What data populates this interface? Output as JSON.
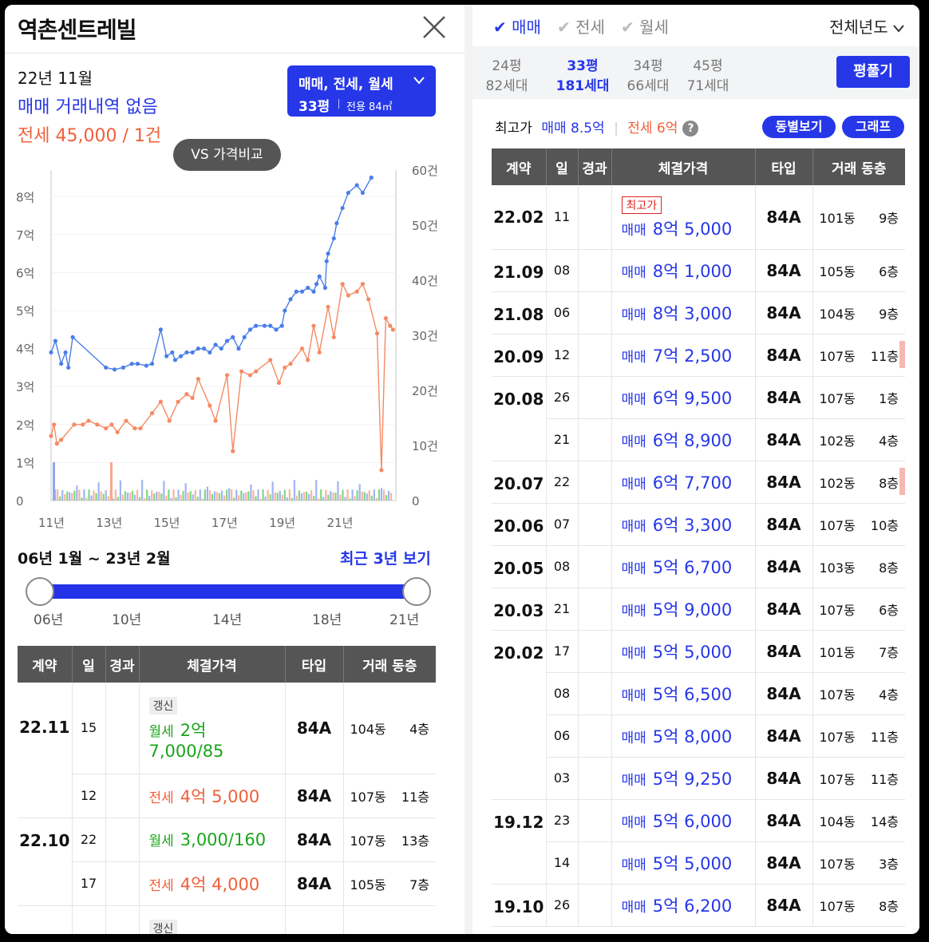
{
  "title": "역촌센트레빌",
  "summary": {
    "month": "22년 11월",
    "sale_status": "매매 거래내역 없음",
    "lease": "전세 45,000 / 1건"
  },
  "filter_button": {
    "line1": "매매, 전세, 월세",
    "size": "33평",
    "area": "전용 84㎡"
  },
  "vs_button": "VS 가격비교",
  "chart_data": {
    "type": "line",
    "x_tick_labels": [
      "11년",
      "13년",
      "15년",
      "17년",
      "19년",
      "21년"
    ],
    "y_left_ticks": [
      "0",
      "1억",
      "2억",
      "3억",
      "4억",
      "5억",
      "6억",
      "7억",
      "8억"
    ],
    "y_left_range": [
      0,
      8.7
    ],
    "y_right_ticks": [
      "0",
      "10건",
      "20건",
      "30건",
      "40건",
      "50건",
      "60건"
    ],
    "y_right_range": [
      0,
      60
    ],
    "grid": true,
    "colors": {
      "sale": "#4a7ee8",
      "lease": "#f58a64"
    },
    "series": [
      {
        "key": "sale",
        "x": [
          2011.0,
          2011.15,
          2011.35,
          2011.5,
          2011.6,
          2011.75,
          2012.9,
          2013.2,
          2013.5,
          2013.8,
          2014.0,
          2014.3,
          2014.5,
          2014.8,
          2015.0,
          2015.2,
          2015.3,
          2015.5,
          2015.7,
          2015.9,
          2016.1,
          2016.3,
          2016.5,
          2016.7,
          2016.9,
          2017.1,
          2017.3,
          2017.5,
          2017.7,
          2017.9,
          2018.1,
          2018.4,
          2018.6,
          2018.8,
          2019.0,
          2019.1,
          2019.3,
          2019.5,
          2019.7,
          2019.9,
          2020.1,
          2020.2,
          2020.3,
          2020.5,
          2020.55,
          2020.6,
          2020.8,
          2020.9,
          2021.1,
          2021.3,
          2021.6,
          2021.8,
          2022.1
        ],
        "y": [
          3.9,
          4.2,
          3.6,
          3.9,
          3.5,
          4.3,
          3.5,
          3.45,
          3.5,
          3.6,
          3.6,
          3.55,
          3.6,
          4.5,
          3.8,
          3.9,
          3.7,
          3.8,
          3.9,
          3.9,
          4.0,
          4.0,
          3.9,
          4.1,
          4.0,
          4.2,
          4.3,
          4.0,
          4.3,
          4.5,
          4.6,
          4.6,
          4.6,
          4.5,
          4.6,
          5.0,
          5.3,
          5.5,
          5.5,
          5.6,
          5.5,
          5.7,
          5.9,
          5.6,
          6.3,
          6.5,
          6.9,
          7.3,
          7.7,
          8.1,
          8.3,
          8.1,
          8.5
        ]
      },
      {
        "key": "lease",
        "x": [
          2011.0,
          2011.1,
          2011.2,
          2011.35,
          2011.8,
          2012.1,
          2012.3,
          2012.6,
          2012.9,
          2013.1,
          2013.3,
          2013.6,
          2013.9,
          2014.1,
          2014.5,
          2014.8,
          2015.1,
          2015.4,
          2015.7,
          2015.9,
          2016.1,
          2016.5,
          2016.7,
          2017.1,
          2017.3,
          2017.6,
          2017.9,
          2018.1,
          2018.6,
          2018.9,
          2019.1,
          2019.3,
          2019.7,
          2019.9,
          2020.1,
          2020.3,
          2020.6,
          2020.8,
          2021.1,
          2021.3,
          2021.6,
          2021.8,
          2022.0,
          2022.3,
          2022.45,
          2022.6,
          2022.75,
          2022.85
        ],
        "y": [
          1.7,
          2.0,
          1.5,
          1.6,
          2.0,
          2.0,
          2.1,
          2.0,
          1.9,
          2.0,
          1.8,
          2.1,
          1.9,
          1.9,
          2.3,
          2.6,
          2.1,
          2.6,
          2.8,
          2.7,
          3.2,
          2.5,
          2.1,
          3.3,
          1.3,
          3.4,
          3.3,
          3.4,
          3.7,
          3.1,
          3.5,
          3.6,
          4.0,
          3.7,
          4.6,
          3.9,
          5.1,
          4.3,
          5.7,
          5.4,
          5.5,
          5.7,
          5.3,
          4.4,
          0.8,
          4.8,
          4.6,
          4.5
        ]
      }
    ]
  },
  "range": {
    "label": "06년 1월 ~ 23년 2월",
    "recent_link": "최근 3년 보기",
    "ticks": [
      "06년",
      "10년",
      "14년",
      "18년",
      "21년"
    ]
  },
  "table_headers": [
    "계약",
    "일",
    "경과",
    "체결가격",
    "타입",
    "거래 동층"
  ],
  "left_rows": [
    {
      "date": "22.11",
      "day": "15",
      "tag": "갱신",
      "kind": "월세",
      "kind_class": "rent",
      "price": "2억",
      "price2": "7,000/85",
      "type": "84A",
      "dong": "104동",
      "floor": "4층"
    },
    {
      "date": "",
      "day": "12",
      "tag": "",
      "kind": "전세",
      "kind_class": "lease",
      "price": "4억 5,000",
      "price2": "",
      "type": "84A",
      "dong": "107동",
      "floor": "11층"
    },
    {
      "date": "22.10",
      "day": "22",
      "tag": "",
      "kind": "월세",
      "kind_class": "rent",
      "price": "3,000/160",
      "price2": "",
      "type": "84A",
      "dong": "107동",
      "floor": "13층"
    },
    {
      "date": "",
      "day": "17",
      "tag": "",
      "kind": "전세",
      "kind_class": "lease",
      "price": "4억 4,000",
      "price2": "",
      "type": "84A",
      "dong": "105동",
      "floor": "7층"
    },
    {
      "date": "",
      "day": "",
      "tag": "갱신",
      "kind": "",
      "kind_class": "rent",
      "price": "",
      "price2": "",
      "type": "",
      "dong": "",
      "floor": ""
    }
  ],
  "right_tabs": {
    "deal_types": [
      "매매",
      "전세",
      "월세"
    ],
    "year_select": "전체년도",
    "pyeong": [
      {
        "size": "24평",
        "units": "82세대"
      },
      {
        "size": "33평",
        "units": "181세대"
      },
      {
        "size": "34평",
        "units": "66세대"
      },
      {
        "size": "45평",
        "units": "71세대"
      }
    ],
    "expand_button": "평풀기"
  },
  "high_price": {
    "label": "최고가",
    "sale": "매매 8.5억",
    "lease": "전세 6억"
  },
  "pills": [
    "동별보기",
    "그래프"
  ],
  "right_rows": [
    {
      "date": "22.02",
      "day": "11",
      "tag": "최고가",
      "price": "8억 5,000",
      "dong": "101동",
      "floor": "9층",
      "bar": false
    },
    {
      "date": "21.09",
      "day": "08",
      "tag": "",
      "price": "8억 1,000",
      "dong": "105동",
      "floor": "6층",
      "bar": false
    },
    {
      "date": "21.08",
      "day": "06",
      "tag": "",
      "price": "8억 3,000",
      "dong": "104동",
      "floor": "9층",
      "bar": false
    },
    {
      "date": "20.09",
      "day": "12",
      "tag": "",
      "price": "7억 2,500",
      "dong": "107동",
      "floor": "11층",
      "bar": true
    },
    {
      "date": "20.08",
      "day": "26",
      "tag": "",
      "price": "6억 9,500",
      "dong": "107동",
      "floor": "1층",
      "bar": false
    },
    {
      "date": "",
      "day": "21",
      "tag": "",
      "price": "6억 8,900",
      "dong": "102동",
      "floor": "4층",
      "bar": false
    },
    {
      "date": "20.07",
      "day": "22",
      "tag": "",
      "price": "6억 7,700",
      "dong": "102동",
      "floor": "8층",
      "bar": true
    },
    {
      "date": "20.06",
      "day": "07",
      "tag": "",
      "price": "6억 3,300",
      "dong": "107동",
      "floor": "10층",
      "bar": false
    },
    {
      "date": "20.05",
      "day": "08",
      "tag": "",
      "price": "5억 6,700",
      "dong": "103동",
      "floor": "8층",
      "bar": false
    },
    {
      "date": "20.03",
      "day": "21",
      "tag": "",
      "price": "5억 9,000",
      "dong": "107동",
      "floor": "6층",
      "bar": false
    },
    {
      "date": "20.02",
      "day": "17",
      "tag": "",
      "price": "5억 5,000",
      "dong": "101동",
      "floor": "7층",
      "bar": false
    },
    {
      "date": "",
      "day": "08",
      "tag": "",
      "price": "5억 6,500",
      "dong": "107동",
      "floor": "4층",
      "bar": false
    },
    {
      "date": "",
      "day": "06",
      "tag": "",
      "price": "5억 8,000",
      "dong": "107동",
      "floor": "11층",
      "bar": false
    },
    {
      "date": "",
      "day": "03",
      "tag": "",
      "price": "5억 9,250",
      "dong": "107동",
      "floor": "11층",
      "bar": false
    },
    {
      "date": "19.12",
      "day": "23",
      "tag": "",
      "price": "5억 6,000",
      "dong": "104동",
      "floor": "14층",
      "bar": false
    },
    {
      "date": "",
      "day": "14",
      "tag": "",
      "price": "5억 5,000",
      "dong": "107동",
      "floor": "3층",
      "bar": false
    },
    {
      "date": "19.10",
      "day": "26",
      "tag": "",
      "price": "5억 6,200",
      "dong": "107동",
      "floor": "8층",
      "bar": false
    }
  ],
  "sale_kind": "매매",
  "type_label": "84A"
}
